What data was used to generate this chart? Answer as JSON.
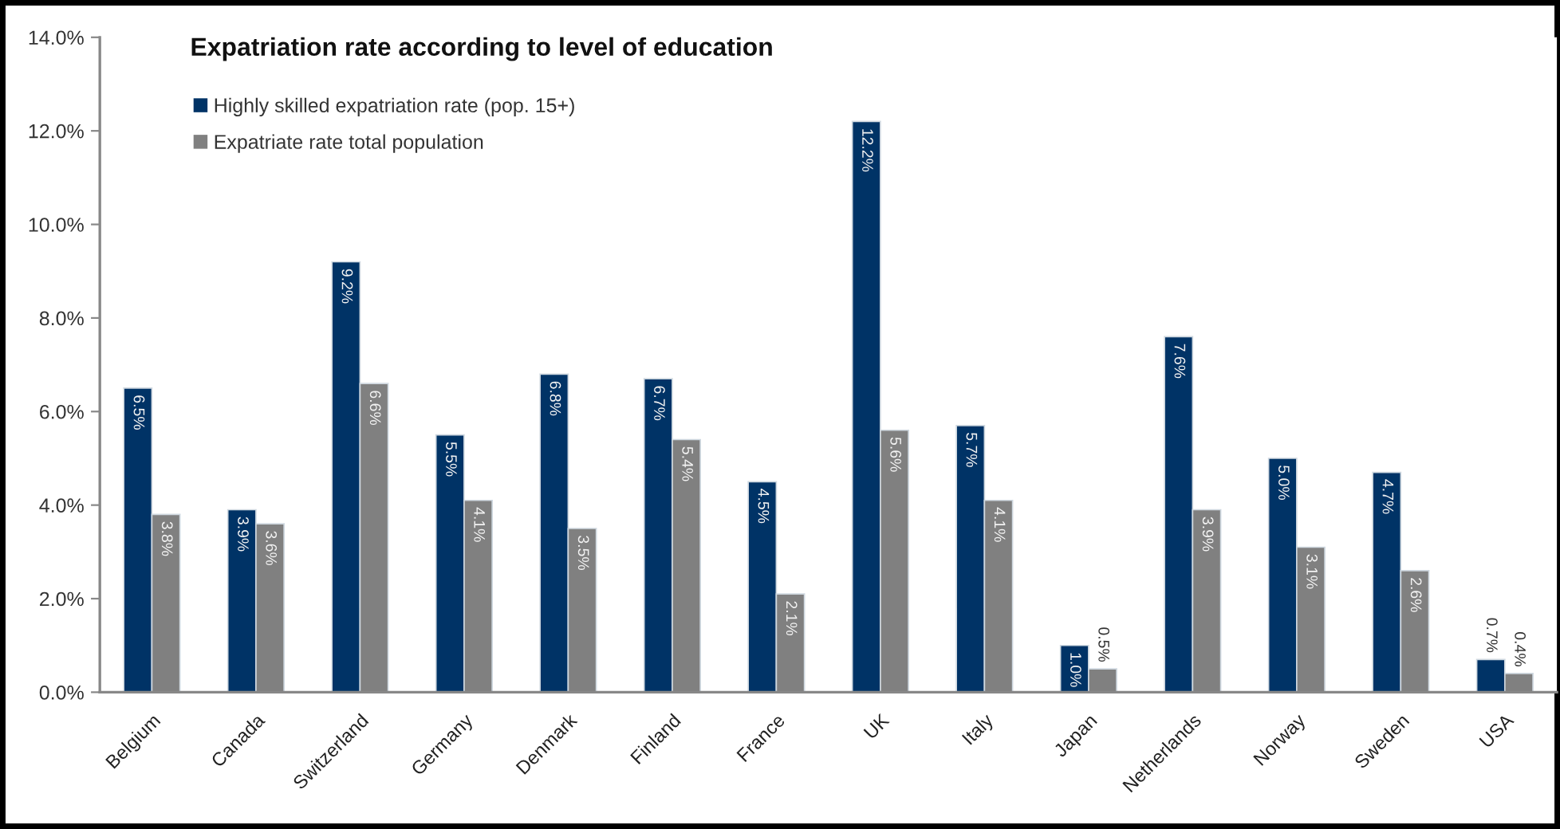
{
  "chart_data": {
    "type": "bar",
    "title": "Expatriation rate according to level of education",
    "categories": [
      "Belgium",
      "Canada",
      "Switzerland",
      "Germany",
      "Denmark",
      "Finland",
      "France",
      "UK",
      "Italy",
      "Japan",
      "Netherlands",
      "Norway",
      "Sweden",
      "USA"
    ],
    "series": [
      {
        "name": "Highly skilled expatriation rate (pop. 15+)",
        "color": "#003366",
        "values": [
          6.5,
          3.9,
          9.2,
          5.5,
          6.8,
          6.7,
          4.5,
          12.2,
          5.7,
          1.0,
          7.6,
          5.0,
          4.7,
          0.7
        ],
        "value_labels": [
          "6.5%",
          "3.9%",
          "9.2%",
          "5.5%",
          "6.8%",
          "6.7%",
          "4.5%",
          "12.2%",
          "5.7%",
          "1.0%",
          "7.6%",
          "5.0%",
          "4.7%",
          "0.7%"
        ]
      },
      {
        "name": "Expatriate rate total population",
        "color": "#808080",
        "values": [
          3.8,
          3.6,
          6.6,
          4.1,
          3.5,
          5.4,
          2.1,
          5.6,
          4.1,
          0.5,
          3.9,
          3.1,
          2.6,
          0.4
        ],
        "value_labels": [
          "3.8%",
          "3.6%",
          "6.6%",
          "4.1%",
          "3.5%",
          "5.4%",
          "2.1%",
          "5.6%",
          "4.1%",
          "0.5%",
          "3.9%",
          "3.1%",
          "2.6%",
          "0.4%"
        ]
      }
    ],
    "ylim": [
      0,
      14
    ],
    "yticks": [
      {
        "value": 0,
        "label": "0.0%"
      },
      {
        "value": 2,
        "label": "2.0%"
      },
      {
        "value": 4,
        "label": "4.0%"
      },
      {
        "value": 6,
        "label": "6.0%"
      },
      {
        "value": 8,
        "label": "8.0%"
      },
      {
        "value": 10,
        "label": "10.0%"
      },
      {
        "value": 12,
        "label": "12.0%"
      },
      {
        "value": 14,
        "label": "14.0%"
      }
    ],
    "legend": "top left"
  }
}
